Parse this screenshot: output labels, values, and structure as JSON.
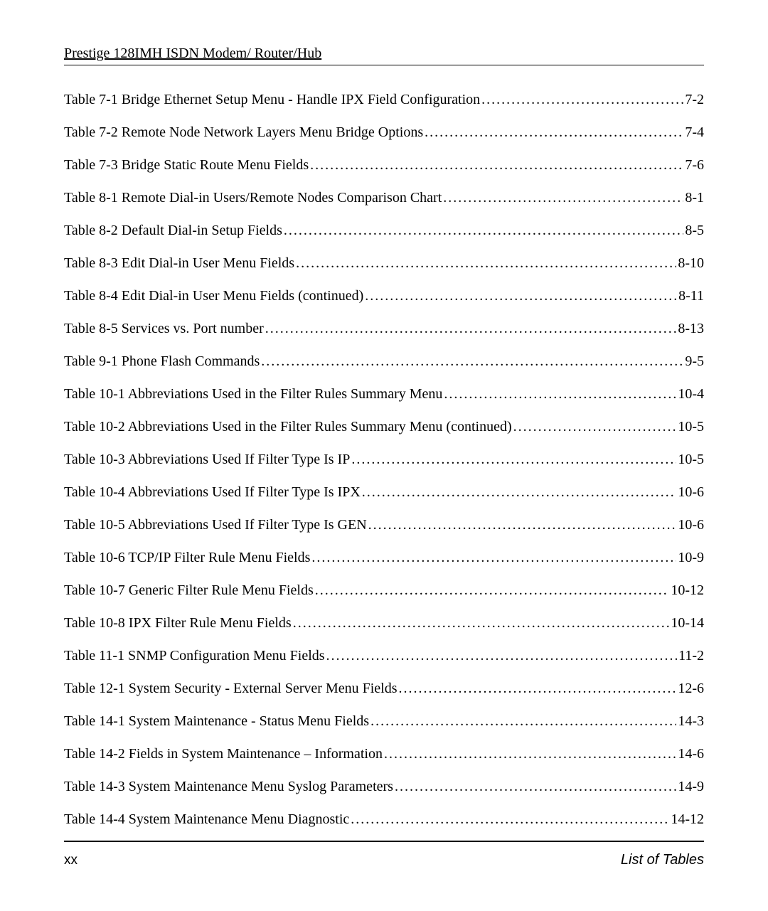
{
  "header": {
    "title": "Prestige 128IMH ISDN Modem/ Router/Hub"
  },
  "toc": {
    "entries": [
      {
        "title": "Table 7-1 Bridge Ethernet Setup Menu - Handle IPX Field Configuration",
        "page": "7-2"
      },
      {
        "title": "Table 7-2 Remote Node Network Layers Menu Bridge Options",
        "page": "7-4"
      },
      {
        "title": "Table 7-3 Bridge Static Route Menu Fields",
        "page": "7-6"
      },
      {
        "title": "Table 8-1 Remote Dial-in Users/Remote Nodes Comparison Chart",
        "page": "8-1"
      },
      {
        "title": "Table 8-2 Default Dial-in Setup Fields",
        "page": "8-5"
      },
      {
        "title": "Table 8-3 Edit Dial-in User Menu Fields",
        "page": "8-10"
      },
      {
        "title": "Table 8-4 Edit Dial-in User Menu Fields (continued)",
        "page": "8-11"
      },
      {
        "title": "Table 8-5 Services vs. Port number",
        "page": "8-13"
      },
      {
        "title": "Table 9-1 Phone Flash Commands",
        "page": "9-5"
      },
      {
        "title": "Table 10-1 Abbreviations Used in the Filter Rules Summary Menu",
        "page": "10-4"
      },
      {
        "title": "Table 10-2 Abbreviations Used in the Filter Rules Summary Menu (continued)",
        "page": "10-5"
      },
      {
        "title": "Table 10-3 Abbreviations Used If Filter Type Is IP",
        "page": "10-5"
      },
      {
        "title": "Table 10-4 Abbreviations Used If Filter Type Is IPX",
        "page": "10-6"
      },
      {
        "title": "Table 10-5  Abbreviations Used If Filter Type Is GEN",
        "page": "10-6"
      },
      {
        "title": "Table 10-6 TCP/IP Filter Rule Menu Fields",
        "page": "10-9"
      },
      {
        "title": "Table 10-7 Generic Filter Rule Menu Fields",
        "page": "10-12"
      },
      {
        "title": "Table 10-8 IPX Filter Rule Menu Fields",
        "page": "10-14"
      },
      {
        "title": "Table 11-1 SNMP Configuration Menu Fields",
        "page": "11-2"
      },
      {
        "title": "Table 12-1 System Security - External Server Menu Fields",
        "page": "12-6"
      },
      {
        "title": "Table 14-1 System Maintenance - Status Menu Fields",
        "page": "14-3"
      },
      {
        "title": "Table 14-2 Fields in System Maintenance – Information",
        "page": "14-6"
      },
      {
        "title": "Table 14-3 System Maintenance Menu Syslog Parameters",
        "page": "14-9"
      },
      {
        "title": "Table 14-4 System Maintenance Menu Diagnostic",
        "page": "14-12"
      }
    ]
  },
  "footer": {
    "page_number": "xx",
    "section_label": "List of Tables"
  },
  "style": {
    "body_font": "Times New Roman",
    "body_fontsize_pt": 15,
    "footer_font": "Arial",
    "footer_italic": true,
    "text_color": "#000000",
    "background_color": "#ffffff",
    "rule_color": "#000000"
  }
}
